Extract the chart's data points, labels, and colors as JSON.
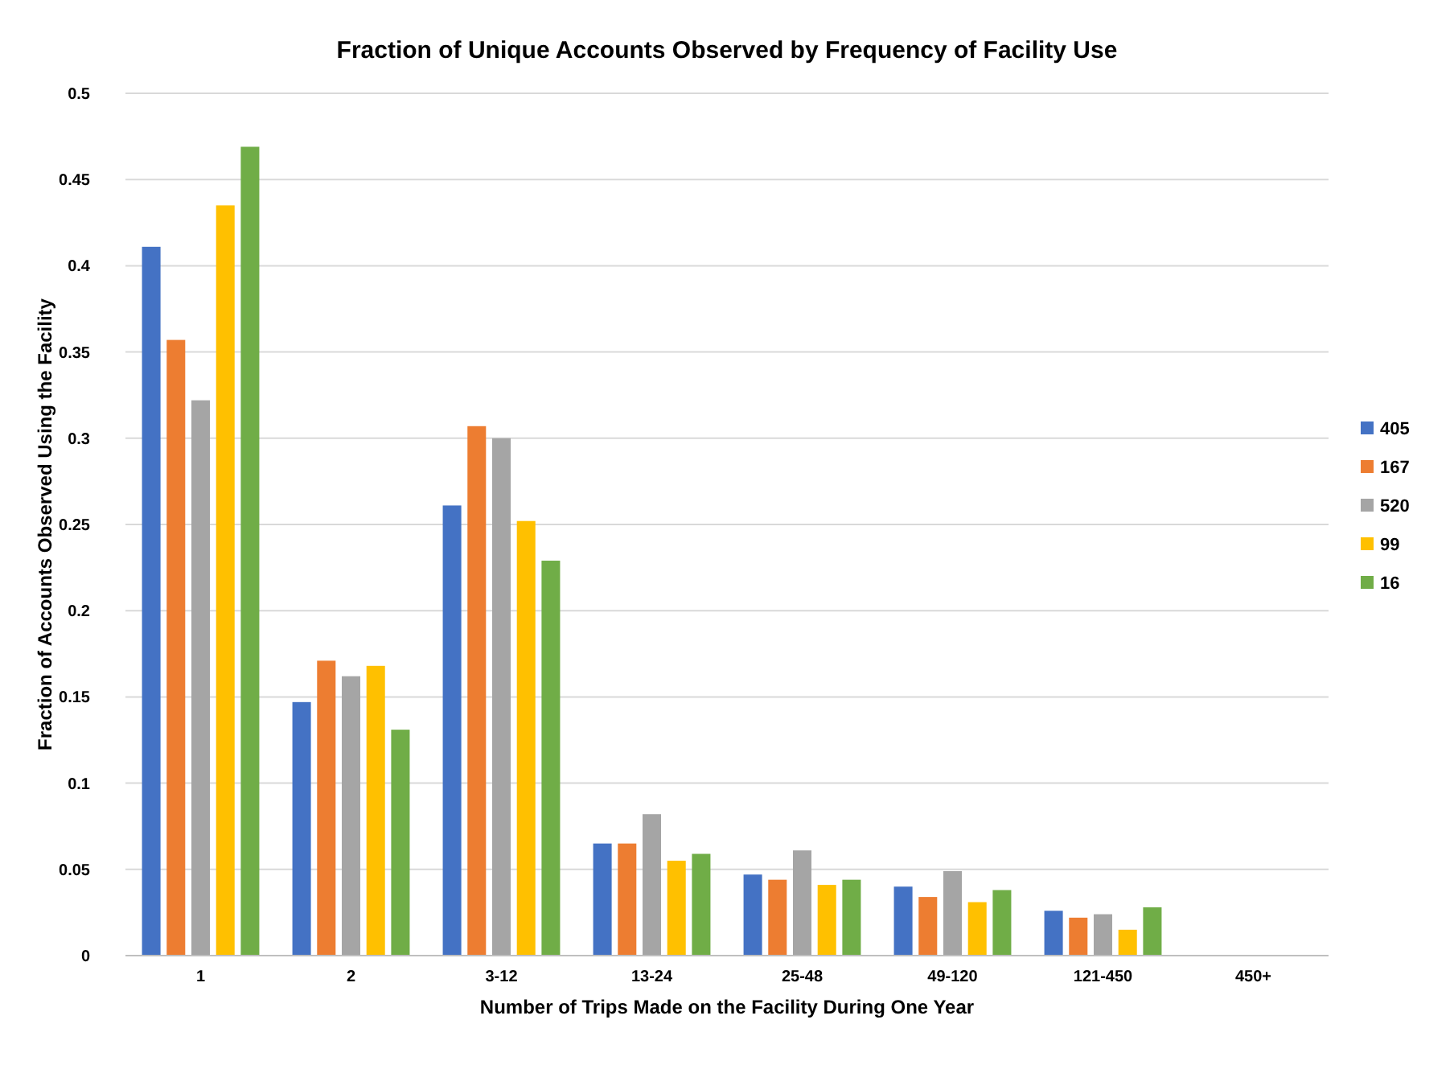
{
  "chart_data": {
    "type": "bar",
    "title": "Fraction of Unique Accounts Observed by Frequency of Facility Use",
    "xlabel": "Number of Trips Made on the Facility During One Year",
    "ylabel": "Fraction of Accounts Observed Using the Facility",
    "categories": [
      "1",
      "2",
      "3-12",
      "13-24",
      "25-48",
      "49-120",
      "121-450",
      "450+"
    ],
    "series": [
      {
        "name": "405",
        "color": "#4472c4",
        "values": [
          0.411,
          0.147,
          0.261,
          0.065,
          0.047,
          0.04,
          0.026,
          null
        ]
      },
      {
        "name": "167",
        "color": "#ed7d31",
        "values": [
          0.357,
          0.171,
          0.307,
          0.065,
          0.044,
          0.034,
          0.022,
          null
        ]
      },
      {
        "name": "520",
        "color": "#a5a5a5",
        "values": [
          0.322,
          0.162,
          0.3,
          0.082,
          0.061,
          0.049,
          0.024,
          null
        ]
      },
      {
        "name": "99",
        "color": "#ffc000",
        "values": [
          0.435,
          0.168,
          0.252,
          0.055,
          0.041,
          0.031,
          0.015,
          null
        ]
      },
      {
        "name": "16",
        "color": "#70ad47",
        "values": [
          0.469,
          0.131,
          0.229,
          0.059,
          0.044,
          0.038,
          0.028,
          null
        ]
      }
    ],
    "ylim": [
      0,
      0.5
    ],
    "yticks": [
      0,
      0.05,
      0.1,
      0.15,
      0.2,
      0.25,
      0.3,
      0.35,
      0.4,
      0.45,
      0.5
    ],
    "grid": "y",
    "legend": "right"
  }
}
